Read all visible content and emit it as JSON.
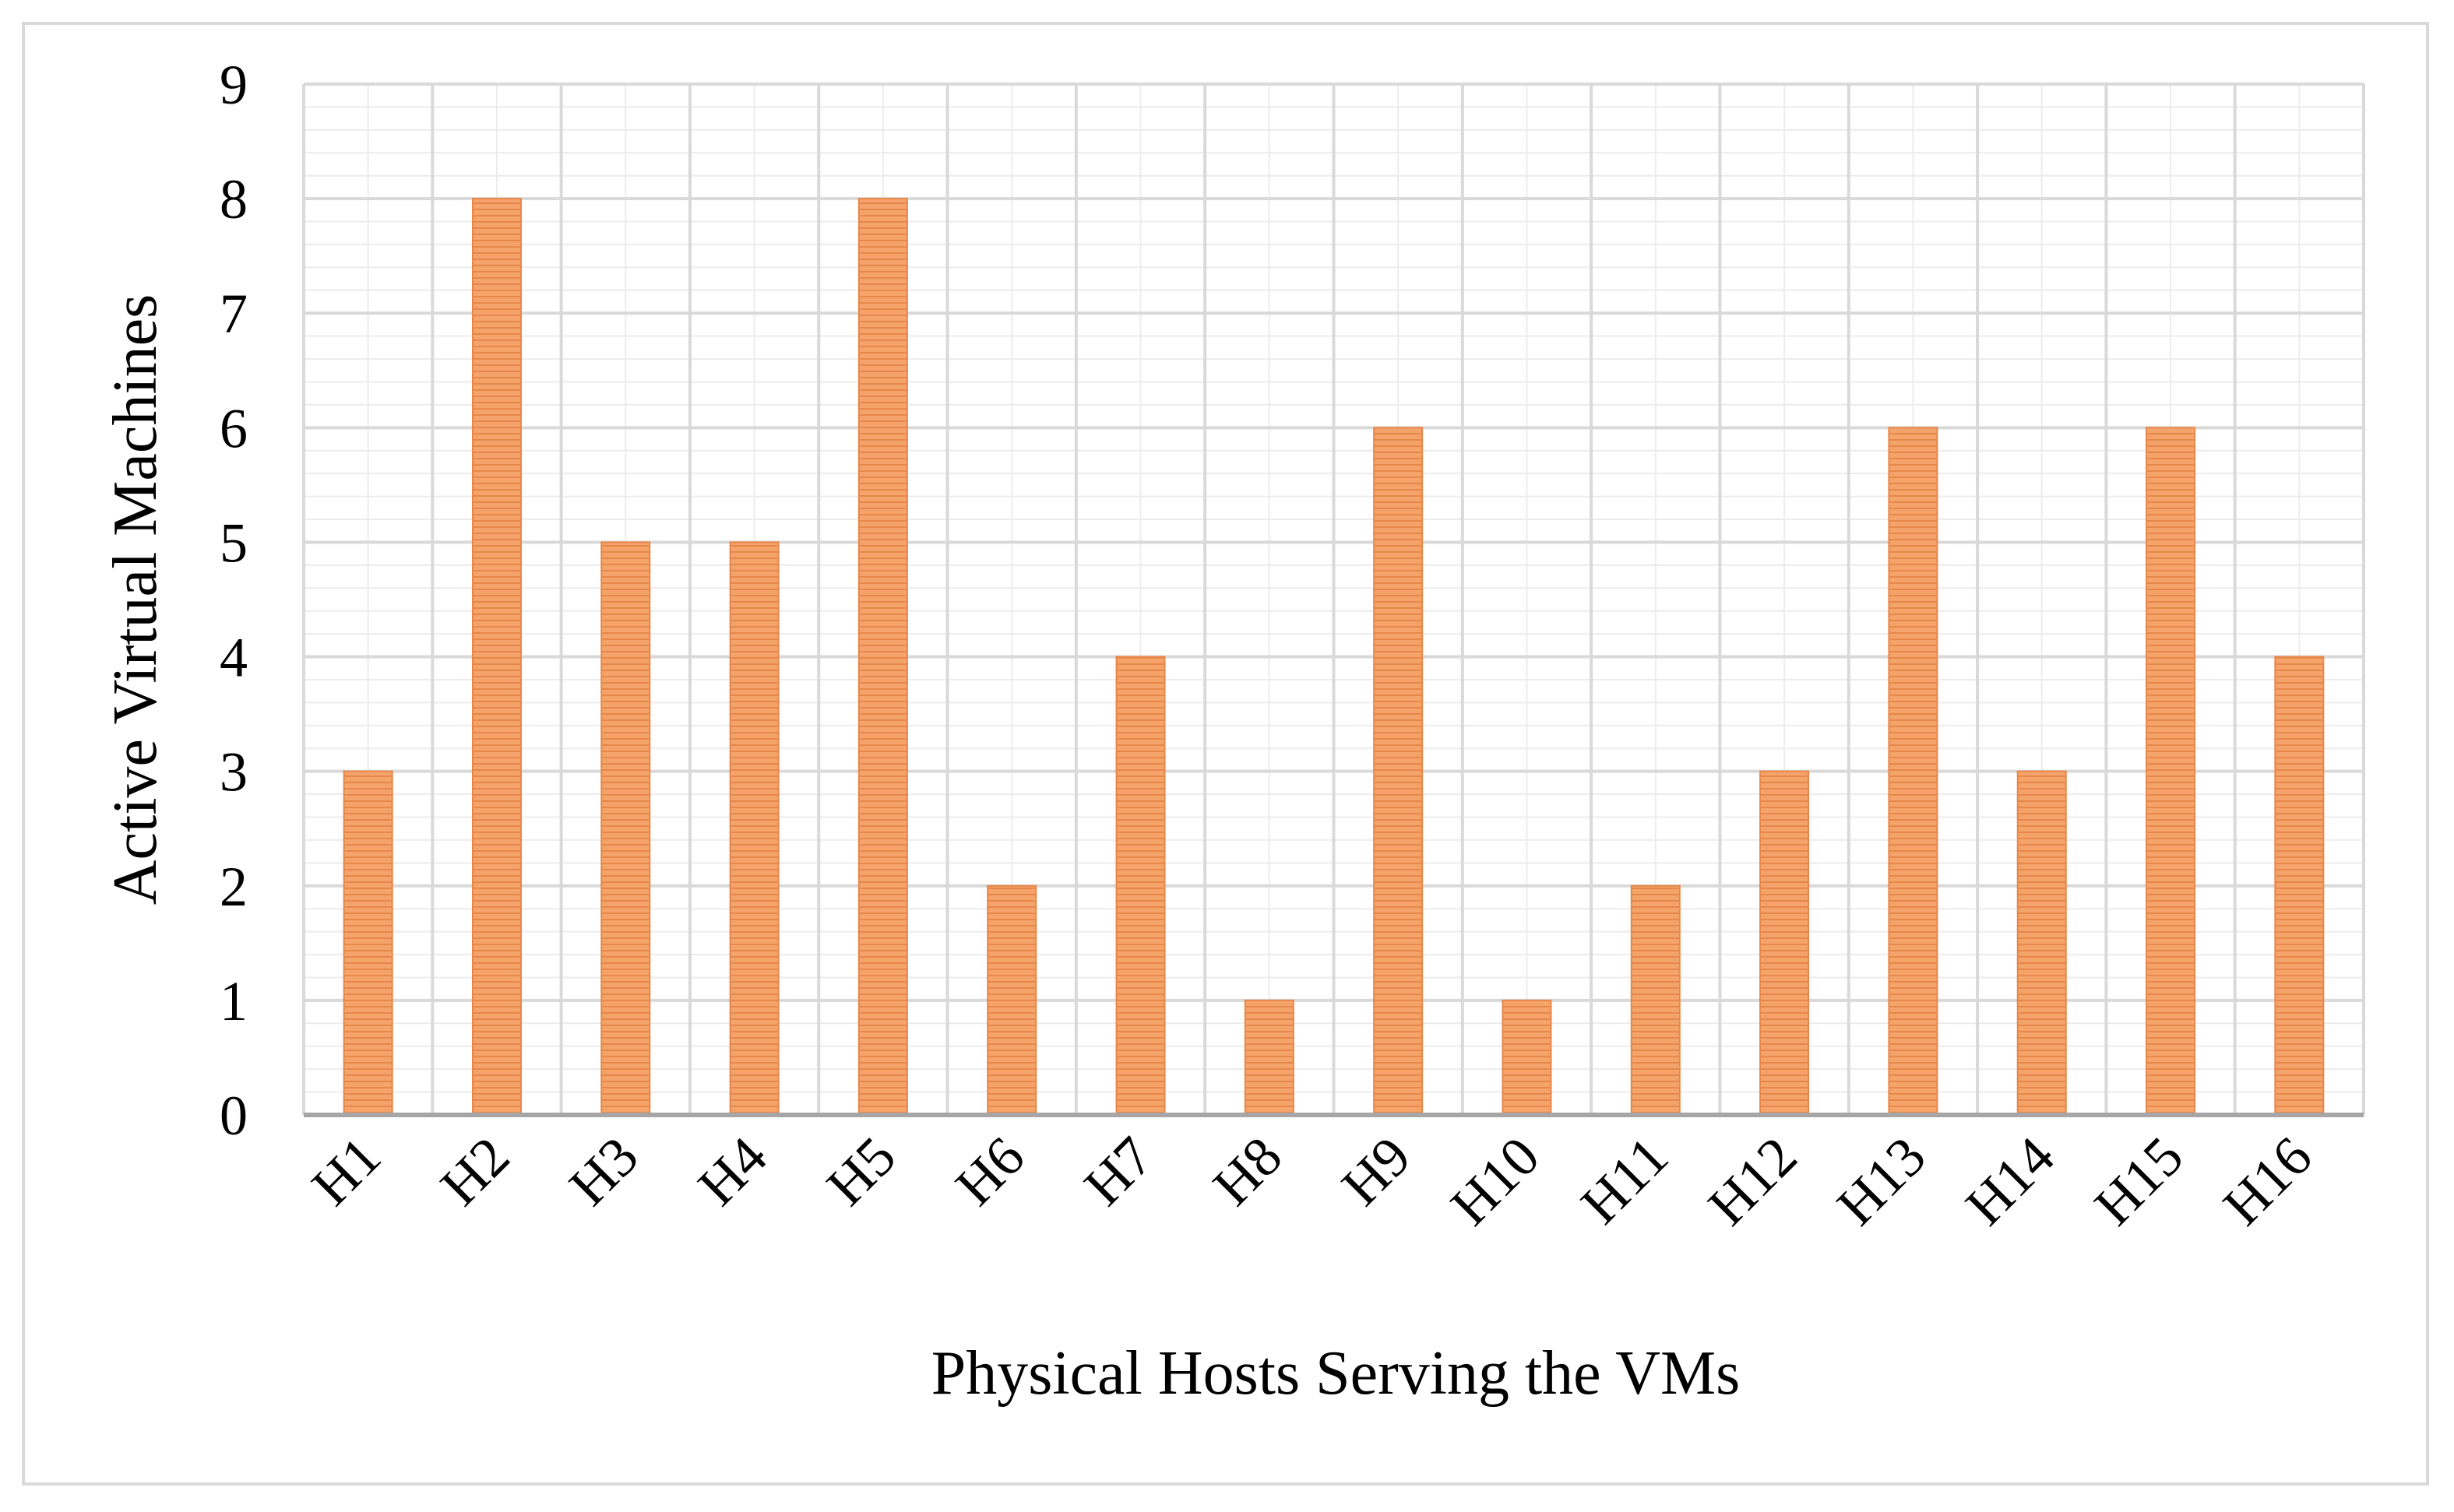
{
  "chart_data": {
    "type": "bar",
    "categories": [
      "H1",
      "H2",
      "H3",
      "H4",
      "H5",
      "H6",
      "H7",
      "H8",
      "H9",
      "H10",
      "H11",
      "H12",
      "H13",
      "H14",
      "H15",
      "H16"
    ],
    "values": [
      3,
      8,
      5,
      5,
      8,
      2,
      4,
      1,
      6,
      1,
      2,
      3,
      6,
      3,
      6,
      4
    ],
    "yticks": [
      "0",
      "1",
      "2",
      "3",
      "4",
      "5",
      "6",
      "7",
      "8",
      "9"
    ],
    "ylim": [
      0,
      9
    ],
    "xlabel": "Physical Hosts Serving the VMs",
    "ylabel": "Active Virtual Machines",
    "grid": true,
    "legend": "none",
    "colors": {
      "bar": "#f4a46a",
      "bar_stripe": "#e8874a",
      "grid": "#d9d9d9",
      "axis": "#a6a6a6"
    }
  }
}
